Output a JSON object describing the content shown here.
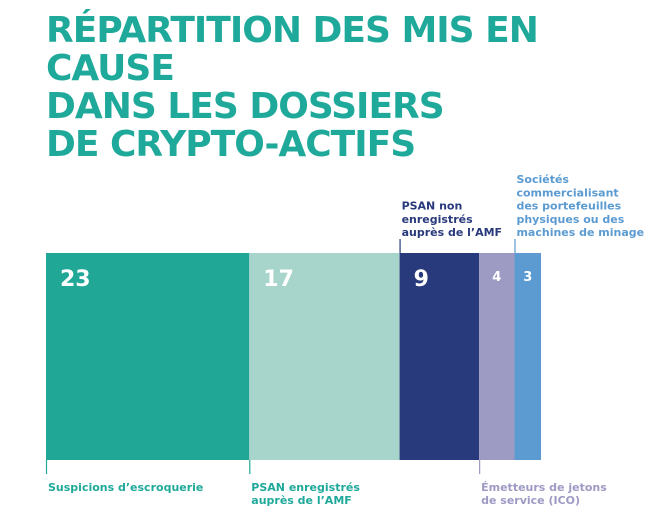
{
  "title": {
    "lines": [
      "RÉPARTITION DES MIS EN CAUSE",
      "DANS LES DOSSIERS",
      "DE CRYPTO-ACTIFS"
    ]
  },
  "chart_data": {
    "type": "bar",
    "orientation": "horizontal-stacked",
    "title": "RÉPARTITION DES MIS EN CAUSE DANS LES DOSSIERS DE CRYPTO-ACTIFS",
    "categories": [
      "Suspicions d’escroquerie",
      "PSAN enregistrés auprès de l’AMF",
      "PSAN non enregistrés auprès de l’AMF",
      "Émetteurs de jetons de service (ICO)",
      "Sociétés commercialisant des portefeuilles physiques ou des machines de minage"
    ],
    "values": [
      23,
      17,
      9,
      4,
      3
    ],
    "segments": [
      {
        "value": "23",
        "label_lines": [
          "Suspicions d’escroquerie"
        ],
        "label_position": "below",
        "color": "#21a795",
        "label_color": "#1fa99a",
        "value_color": "#ffffff"
      },
      {
        "value": "17",
        "label_lines": [
          "PSAN enregistrés",
          "auprès de l’AMF"
        ],
        "label_position": "below",
        "color": "#a8d5cb",
        "label_color": "#1fa99a",
        "value_color": "#ffffff"
      },
      {
        "value": "9",
        "label_lines": [
          "PSAN non",
          "enregistrés",
          "auprès de l’AMF"
        ],
        "label_position": "above",
        "color": "#283a7c",
        "label_color": "#283a7c",
        "value_color": "#ffffff"
      },
      {
        "value": "4",
        "label_lines": [
          "Émetteurs de jetons",
          "de service (ICO)"
        ],
        "label_position": "below",
        "color": "#9d9ac4",
        "label_color": "#9d9ac4",
        "value_color": "#ffffff"
      },
      {
        "value": "3",
        "label_lines": [
          "Sociétés",
          "commercialisant",
          "des portefeuilles",
          "physiques ou des",
          "machines de minage"
        ],
        "label_position": "above",
        "color": "#5b9bd1",
        "label_color": "#5b9bd1",
        "value_color": "#ffffff"
      }
    ],
    "legend": "none",
    "grid": false
  }
}
